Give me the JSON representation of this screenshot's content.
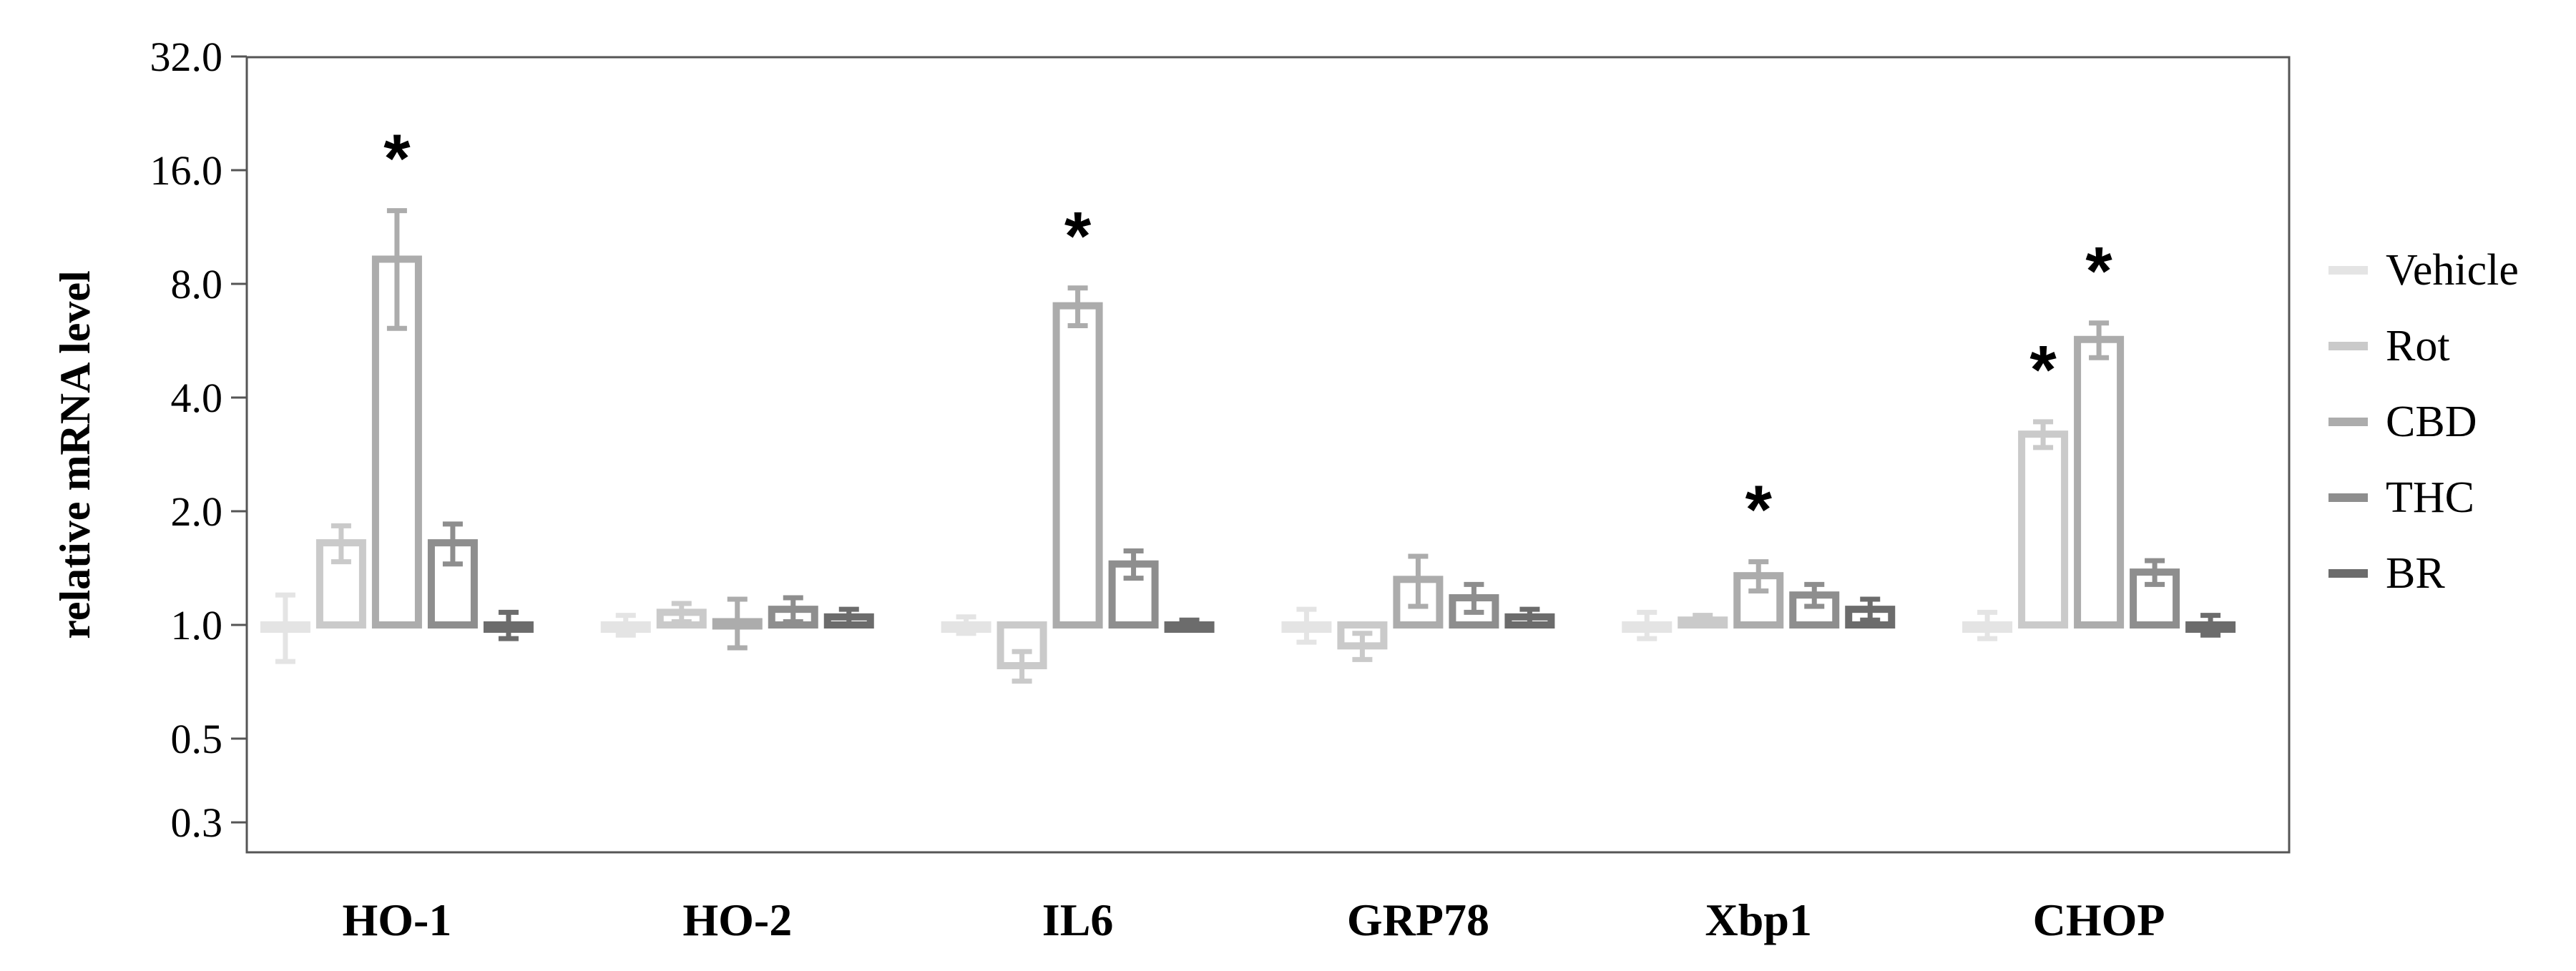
{
  "chart_data": {
    "type": "bar",
    "ylabel": "relative mRNA level",
    "yscale": "log2",
    "ylim": [
      0.35,
      32
    ],
    "yticks": [
      32,
      16,
      8,
      4,
      2,
      1,
      0.5,
      0.3
    ],
    "ytick_labels": [
      "32.0",
      "16.0",
      "8.0",
      "4.0",
      "2.0",
      "1.0",
      "0.5",
      "0.3"
    ],
    "categories": [
      "HO-1",
      "HO-2",
      "IL6",
      "GRP78",
      "Xbp1",
      "CHOP"
    ],
    "legend_position": "right",
    "series": [
      {
        "name": "Vehicle",
        "color": "#e4e4e4",
        "values": [
          1.0,
          1.0,
          1.0,
          1.0,
          1.0,
          1.0
        ],
        "errors": [
          0.2,
          0.06,
          0.05,
          0.1,
          0.08,
          0.08
        ]
      },
      {
        "name": "Rot",
        "color": "#cacaca",
        "values": [
          1.65,
          1.08,
          0.78,
          0.88,
          1.03,
          3.2
        ],
        "errors": [
          0.18,
          0.06,
          0.07,
          0.07,
          0.03,
          0.25
        ]
      },
      {
        "name": "CBD",
        "color": "#acacac",
        "values": [
          9.3,
          1.02,
          7.0,
          1.32,
          1.35,
          5.7
        ],
        "errors": [
          3.2,
          0.15,
          0.8,
          0.2,
          0.12,
          0.6
        ]
      },
      {
        "name": "THC",
        "color": "#8e8e8e",
        "values": [
          1.65,
          1.1,
          1.45,
          1.18,
          1.2,
          1.38
        ],
        "errors": [
          0.2,
          0.08,
          0.12,
          0.1,
          0.08,
          0.1
        ]
      },
      {
        "name": "BR",
        "color": "#6c6c6c",
        "values": [
          1.0,
          1.05,
          1.0,
          1.05,
          1.1,
          1.0
        ],
        "errors": [
          0.08,
          0.05,
          0.03,
          0.05,
          0.07,
          0.06
        ]
      }
    ],
    "significance": [
      {
        "category": "HO-1",
        "series": "CBD",
        "label": "*"
      },
      {
        "category": "IL6",
        "series": "CBD",
        "label": "*"
      },
      {
        "category": "Xbp1",
        "series": "CBD",
        "label": "*"
      },
      {
        "category": "CHOP",
        "series": "Rot",
        "label": "*"
      },
      {
        "category": "CHOP",
        "series": "CBD",
        "label": "*"
      }
    ]
  }
}
